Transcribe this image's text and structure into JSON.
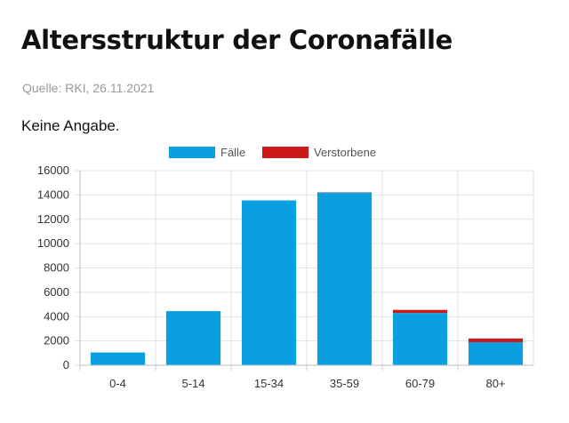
{
  "header": {
    "title": "Altersstruktur der Coronafälle",
    "source": "Quelle: RKI, 26.11.2021",
    "note": "Keine Angabe."
  },
  "chart_data": {
    "type": "bar",
    "stacked": true,
    "categories": [
      "0-4",
      "5-14",
      "15-34",
      "35-59",
      "60-79",
      "80+"
    ],
    "series": [
      {
        "name": "Fälle",
        "color": "#0aa0e0",
        "values": [
          1050,
          4450,
          13550,
          14200,
          4300,
          1900
        ]
      },
      {
        "name": "Verstorbene",
        "color": "#cc1a1a",
        "values": [
          0,
          0,
          0,
          20,
          250,
          300
        ]
      }
    ],
    "ylim": [
      0,
      16000
    ],
    "yticks": [
      "0",
      "2000",
      "4000",
      "6000",
      "8000",
      "10000",
      "12000",
      "14000",
      "16000"
    ],
    "grid": true,
    "legend": "top"
  }
}
